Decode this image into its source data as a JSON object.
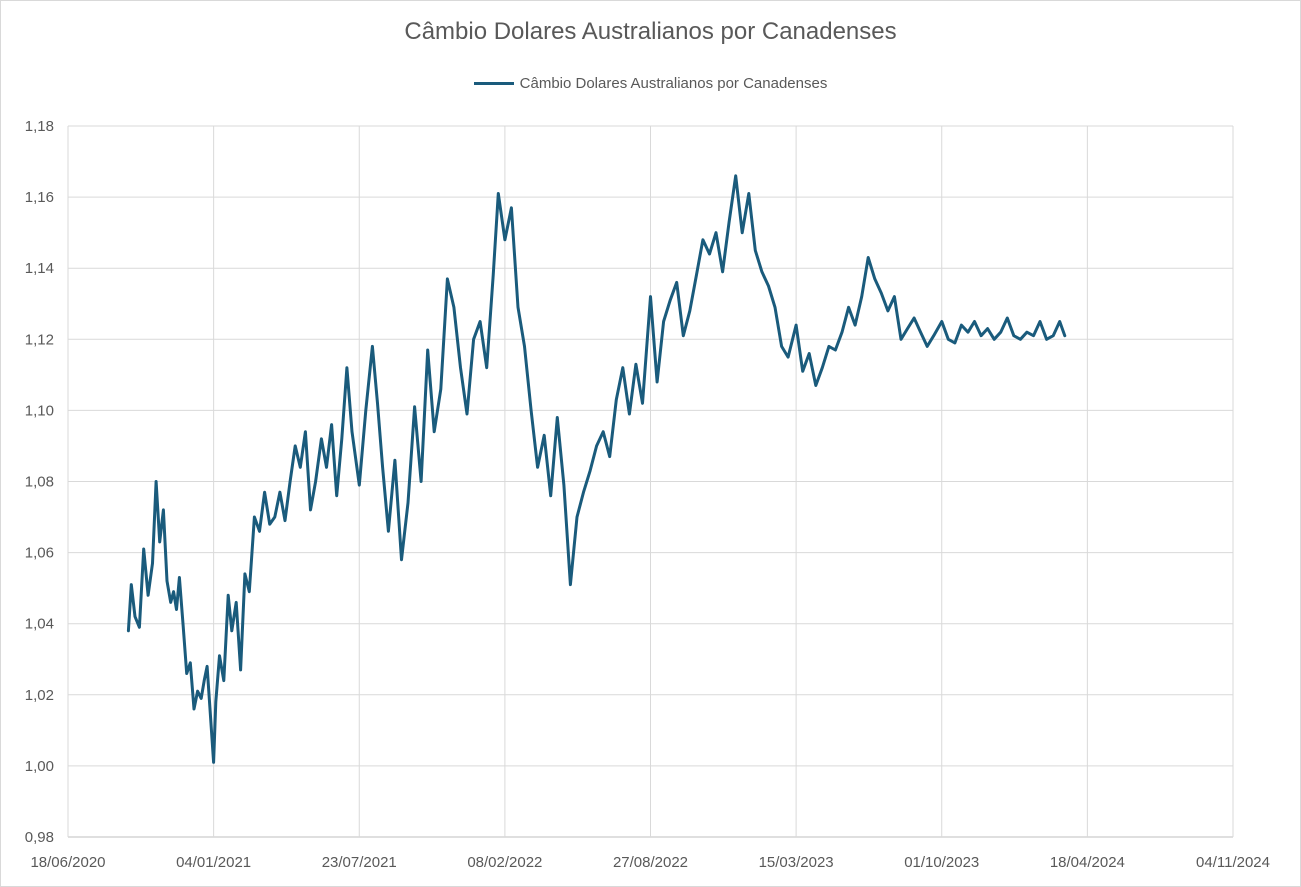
{
  "chart_data": {
    "type": "line",
    "title": "Câmbio Dolares Australianos por Canadenses",
    "legend": "top",
    "grid": true,
    "xlabel": "",
    "ylabel": "",
    "ylim": [
      0.98,
      1.18
    ],
    "xlim": [
      "2020-06-18",
      "2024-11-04"
    ],
    "y_ticks": [
      "0,98",
      "1,00",
      "1,02",
      "1,04",
      "1,06",
      "1,08",
      "1,10",
      "1,12",
      "1,14",
      "1,16",
      "1,18"
    ],
    "x_ticks": [
      "18/06/2020",
      "04/01/2021",
      "23/07/2021",
      "08/02/2022",
      "27/08/2022",
      "15/03/2023",
      "01/10/2023",
      "18/04/2024",
      "04/11/2024"
    ],
    "series": [
      {
        "name": "Câmbio Dolares Australianos por Canadenses",
        "color": "#1a5b7c",
        "x": [
          "2020-09-09",
          "2020-09-13",
          "2020-09-18",
          "2020-09-24",
          "2020-09-30",
          "2020-10-06",
          "2020-10-12",
          "2020-10-17",
          "2020-10-22",
          "2020-10-27",
          "2020-11-01",
          "2020-11-06",
          "2020-11-10",
          "2020-11-14",
          "2020-11-18",
          "2020-11-23",
          "2020-11-28",
          "2020-12-03",
          "2020-12-08",
          "2020-12-13",
          "2020-12-18",
          "2020-12-22",
          "2020-12-26",
          "2020-12-30",
          "2021-01-04",
          "2021-01-07",
          "2021-01-12",
          "2021-01-18",
          "2021-01-24",
          "2021-01-29",
          "2021-02-04",
          "2021-02-10",
          "2021-02-16",
          "2021-02-22",
          "2021-03-01",
          "2021-03-08",
          "2021-03-15",
          "2021-03-22",
          "2021-03-29",
          "2021-04-05",
          "2021-04-12",
          "2021-04-19",
          "2021-04-26",
          "2021-05-03",
          "2021-05-10",
          "2021-05-17",
          "2021-05-24",
          "2021-06-01",
          "2021-06-08",
          "2021-06-15",
          "2021-06-22",
          "2021-06-29",
          "2021-07-06",
          "2021-07-13",
          "2021-07-23",
          "2021-08-01",
          "2021-08-10",
          "2021-08-17",
          "2021-08-24",
          "2021-09-01",
          "2021-09-10",
          "2021-09-19",
          "2021-09-28",
          "2021-10-07",
          "2021-10-16",
          "2021-10-25",
          "2021-11-03",
          "2021-11-12",
          "2021-11-21",
          "2021-11-30",
          "2021-12-09",
          "2021-12-18",
          "2021-12-27",
          "2022-01-05",
          "2022-01-14",
          "2022-01-23",
          "2022-01-30",
          "2022-02-08",
          "2022-02-17",
          "2022-02-26",
          "2022-03-07",
          "2022-03-16",
          "2022-03-25",
          "2022-04-03",
          "2022-04-12",
          "2022-04-21",
          "2022-04-30",
          "2022-05-09",
          "2022-05-18",
          "2022-05-27",
          "2022-06-05",
          "2022-06-14",
          "2022-06-23",
          "2022-07-02",
          "2022-07-11",
          "2022-07-20",
          "2022-07-29",
          "2022-08-07",
          "2022-08-16",
          "2022-08-27",
          "2022-09-05",
          "2022-09-14",
          "2022-09-23",
          "2022-10-02",
          "2022-10-11",
          "2022-10-20",
          "2022-10-29",
          "2022-11-07",
          "2022-11-16",
          "2022-11-25",
          "2022-12-04",
          "2022-12-13",
          "2022-12-22",
          "2022-12-31",
          "2023-01-09",
          "2023-01-18",
          "2023-01-27",
          "2023-02-05",
          "2023-02-14",
          "2023-02-23",
          "2023-03-04",
          "2023-03-15",
          "2023-03-24",
          "2023-04-02",
          "2023-04-11",
          "2023-04-20",
          "2023-04-29",
          "2023-05-08",
          "2023-05-17",
          "2023-05-26",
          "2023-06-04",
          "2023-06-13",
          "2023-06-22",
          "2023-07-01",
          "2023-07-10",
          "2023-07-19",
          "2023-07-28",
          "2023-08-06",
          "2023-08-15",
          "2023-08-24",
          "2023-09-02",
          "2023-09-11",
          "2023-09-20",
          "2023-10-01",
          "2023-10-10",
          "2023-10-19",
          "2023-10-28",
          "2023-11-06",
          "2023-11-15",
          "2023-11-24",
          "2023-12-03",
          "2023-12-12",
          "2023-12-21",
          "2023-12-30",
          "2024-01-08",
          "2024-01-17",
          "2024-01-26",
          "2024-02-04",
          "2024-02-13",
          "2024-02-22",
          "2024-03-02",
          "2024-03-11",
          "2024-03-18"
        ],
        "y": [
          1.038,
          1.051,
          1.042,
          1.039,
          1.061,
          1.048,
          1.057,
          1.08,
          1.063,
          1.072,
          1.052,
          1.046,
          1.049,
          1.044,
          1.053,
          1.04,
          1.026,
          1.029,
          1.016,
          1.021,
          1.019,
          1.024,
          1.028,
          1.016,
          1.001,
          1.018,
          1.031,
          1.024,
          1.048,
          1.038,
          1.046,
          1.027,
          1.054,
          1.049,
          1.07,
          1.066,
          1.077,
          1.068,
          1.07,
          1.077,
          1.069,
          1.08,
          1.09,
          1.084,
          1.094,
          1.072,
          1.08,
          1.092,
          1.084,
          1.096,
          1.076,
          1.092,
          1.112,
          1.094,
          1.079,
          1.1,
          1.118,
          1.102,
          1.084,
          1.066,
          1.086,
          1.058,
          1.074,
          1.101,
          1.08,
          1.117,
          1.094,
          1.106,
          1.137,
          1.129,
          1.112,
          1.099,
          1.12,
          1.125,
          1.112,
          1.138,
          1.161,
          1.148,
          1.157,
          1.129,
          1.118,
          1.1,
          1.084,
          1.093,
          1.076,
          1.098,
          1.079,
          1.051,
          1.07,
          1.077,
          1.083,
          1.09,
          1.094,
          1.087,
          1.103,
          1.112,
          1.099,
          1.113,
          1.102,
          1.132,
          1.108,
          1.125,
          1.131,
          1.136,
          1.121,
          1.128,
          1.138,
          1.148,
          1.144,
          1.15,
          1.139,
          1.153,
          1.166,
          1.15,
          1.161,
          1.145,
          1.139,
          1.135,
          1.129,
          1.118,
          1.115,
          1.124,
          1.111,
          1.116,
          1.107,
          1.112,
          1.118,
          1.117,
          1.122,
          1.129,
          1.124,
          1.132,
          1.143,
          1.137,
          1.133,
          1.128,
          1.132,
          1.12,
          1.123,
          1.126,
          1.122,
          1.118,
          1.121,
          1.125,
          1.12,
          1.119,
          1.124,
          1.122,
          1.125,
          1.121,
          1.123,
          1.12,
          1.122,
          1.126,
          1.121,
          1.12,
          1.122,
          1.121,
          1.125,
          1.12,
          1.121,
          1.125,
          1.121
        ]
      }
    ]
  }
}
